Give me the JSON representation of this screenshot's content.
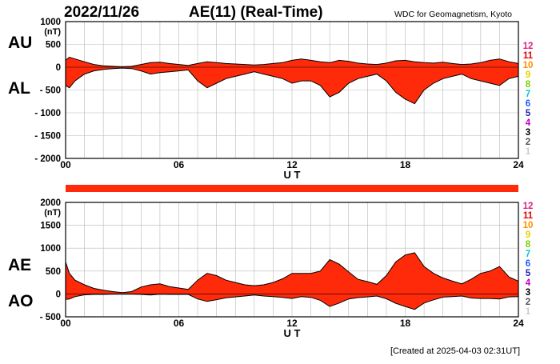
{
  "header": {
    "date": "2022/11/26",
    "title": "AE(11) (Real-Time)",
    "source": "WDC for Geomagnetism, Kyoto"
  },
  "footer": {
    "created": "[Created at 2025-04-03 02:31UT]"
  },
  "station_counts": [
    "12",
    "11",
    "10",
    "9",
    "8",
    "7",
    "6",
    "5",
    "4",
    "3",
    "2",
    "1"
  ],
  "station_colors": [
    "#e0207a",
    "#e00000",
    "#ff8c00",
    "#e8d000",
    "#7bd000",
    "#00c8c8",
    "#1e5aff",
    "#2020b0",
    "#c000c0",
    "#000000",
    "#555555",
    "#cccccc"
  ],
  "fill_color": "#ff2a0a",
  "coverage_bar_color": "#ff2a0a",
  "chart_data": [
    {
      "type": "area",
      "panel": "AU/AL",
      "left_labels": {
        "upper": "AU",
        "lower": "AL"
      },
      "unit": "(nT)",
      "xlabel": "U T",
      "xticks": [
        "00",
        "06",
        "12",
        "18",
        "24"
      ],
      "xlim": [
        0,
        24
      ],
      "ylim": [
        -2000,
        1000
      ],
      "yticks": [
        {
          "value": 1000,
          "label": "1000"
        },
        {
          "value": 500,
          "label": "500"
        },
        {
          "value": 0,
          "label": "0"
        },
        {
          "value": -500,
          "label": "- 500"
        },
        {
          "value": -1000,
          "label": "- 1000"
        },
        {
          "value": -1500,
          "label": "- 1500"
        },
        {
          "value": -2000,
          "label": "- 2000"
        }
      ],
      "grid": true,
      "series": [
        {
          "name": "AU",
          "x": [
            0,
            0.2,
            0.5,
            1,
            1.5,
            2,
            2.5,
            3,
            3.5,
            4,
            4.5,
            5,
            5.5,
            6,
            6.5,
            7,
            7.5,
            8,
            8.5,
            9,
            9.5,
            10,
            10.5,
            11,
            11.5,
            12,
            12.5,
            13,
            13.5,
            14,
            14.5,
            15,
            15.5,
            16,
            16.5,
            17,
            17.5,
            18,
            18.5,
            19,
            19.5,
            20,
            20.5,
            21,
            21.5,
            22,
            22.5,
            23,
            23.5,
            24
          ],
          "values": [
            150,
            220,
            180,
            120,
            60,
            30,
            20,
            10,
            20,
            60,
            100,
            110,
            80,
            60,
            40,
            80,
            120,
            100,
            80,
            70,
            60,
            50,
            60,
            80,
            100,
            150,
            180,
            150,
            120,
            100,
            150,
            130,
            90,
            70,
            60,
            90,
            140,
            150,
            120,
            100,
            90,
            110,
            80,
            60,
            70,
            100,
            150,
            180,
            120,
            80
          ]
        },
        {
          "name": "AL",
          "x": [
            0,
            0.2,
            0.5,
            1,
            1.5,
            2,
            2.5,
            3,
            3.5,
            4,
            4.5,
            5,
            5.5,
            6,
            6.5,
            7,
            7.5,
            8,
            8.5,
            9,
            9.5,
            10,
            10.5,
            11,
            11.5,
            12,
            12.5,
            13,
            13.5,
            14,
            14.5,
            15,
            15.5,
            16,
            16.5,
            17,
            17.5,
            18,
            18.5,
            19,
            19.5,
            20,
            20.5,
            21,
            21.5,
            22,
            22.5,
            23,
            23.5,
            24
          ],
          "values": [
            -400,
            -450,
            -300,
            -150,
            -80,
            -50,
            -30,
            -20,
            -30,
            -80,
            -150,
            -120,
            -100,
            -80,
            -60,
            -300,
            -450,
            -350,
            -250,
            -200,
            -150,
            -100,
            -150,
            -200,
            -250,
            -350,
            -300,
            -300,
            -400,
            -650,
            -550,
            -350,
            -250,
            -200,
            -150,
            -300,
            -550,
            -700,
            -800,
            -500,
            -350,
            -250,
            -200,
            -150,
            -250,
            -300,
            -350,
            -400,
            -250,
            -200
          ]
        }
      ]
    },
    {
      "type": "area",
      "panel": "AE/AO",
      "left_labels": {
        "upper": "AE",
        "lower": "AO"
      },
      "unit": "(nT)",
      "xlabel": "U T",
      "xticks": [
        "00",
        "06",
        "12",
        "18",
        "24"
      ],
      "xlim": [
        0,
        24
      ],
      "ylim": [
        -500,
        2000
      ],
      "yticks": [
        {
          "value": 2000,
          "label": "2000"
        },
        {
          "value": 1500,
          "label": "1500"
        },
        {
          "value": 1000,
          "label": "1000"
        },
        {
          "value": 500,
          "label": "500"
        },
        {
          "value": 0,
          "label": "0"
        },
        {
          "value": -500,
          "label": "- 500"
        }
      ],
      "grid": true,
      "series": [
        {
          "name": "AE",
          "x": [
            0,
            0.2,
            0.5,
            1,
            1.5,
            2,
            2.5,
            3,
            3.5,
            4,
            4.5,
            5,
            5.5,
            6,
            6.5,
            7,
            7.5,
            8,
            8.5,
            9,
            9.5,
            10,
            10.5,
            11,
            11.5,
            12,
            12.5,
            13,
            13.5,
            14,
            14.5,
            15,
            15.5,
            16,
            16.5,
            17,
            17.5,
            18,
            18.5,
            19,
            19.5,
            20,
            20.5,
            21,
            21.5,
            22,
            22.5,
            23,
            23.5,
            24
          ],
          "values": [
            700,
            450,
            300,
            200,
            120,
            80,
            50,
            30,
            50,
            150,
            200,
            220,
            160,
            130,
            100,
            300,
            450,
            400,
            300,
            250,
            200,
            180,
            200,
            250,
            330,
            450,
            450,
            450,
            500,
            750,
            650,
            480,
            320,
            270,
            210,
            400,
            700,
            850,
            900,
            600,
            450,
            350,
            280,
            220,
            320,
            450,
            500,
            600,
            370,
            280
          ]
        },
        {
          "name": "AO",
          "x": [
            0,
            0.2,
            0.5,
            1,
            1.5,
            2,
            2.5,
            3,
            3.5,
            4,
            4.5,
            5,
            5.5,
            6,
            6.5,
            7,
            7.5,
            8,
            8.5,
            9,
            9.5,
            10,
            10.5,
            11,
            11.5,
            12,
            12.5,
            13,
            13.5,
            14,
            14.5,
            15,
            15.5,
            16,
            16.5,
            17,
            17.5,
            18,
            18.5,
            19,
            19.5,
            20,
            20.5,
            21,
            21.5,
            22,
            22.5,
            23,
            23.5,
            24
          ],
          "values": [
            -120,
            -110,
            -60,
            -20,
            -10,
            -10,
            -5,
            -5,
            -5,
            -10,
            -25,
            -5,
            -10,
            -10,
            -10,
            -110,
            -165,
            -125,
            -85,
            -65,
            -45,
            -25,
            -45,
            -60,
            -75,
            -100,
            -60,
            -75,
            -140,
            -275,
            -200,
            -110,
            -80,
            -65,
            -45,
            -105,
            -205,
            -275,
            -340,
            -200,
            -130,
            -70,
            -60,
            -45,
            -90,
            -100,
            -100,
            -110,
            -65,
            -60
          ]
        }
      ]
    }
  ]
}
